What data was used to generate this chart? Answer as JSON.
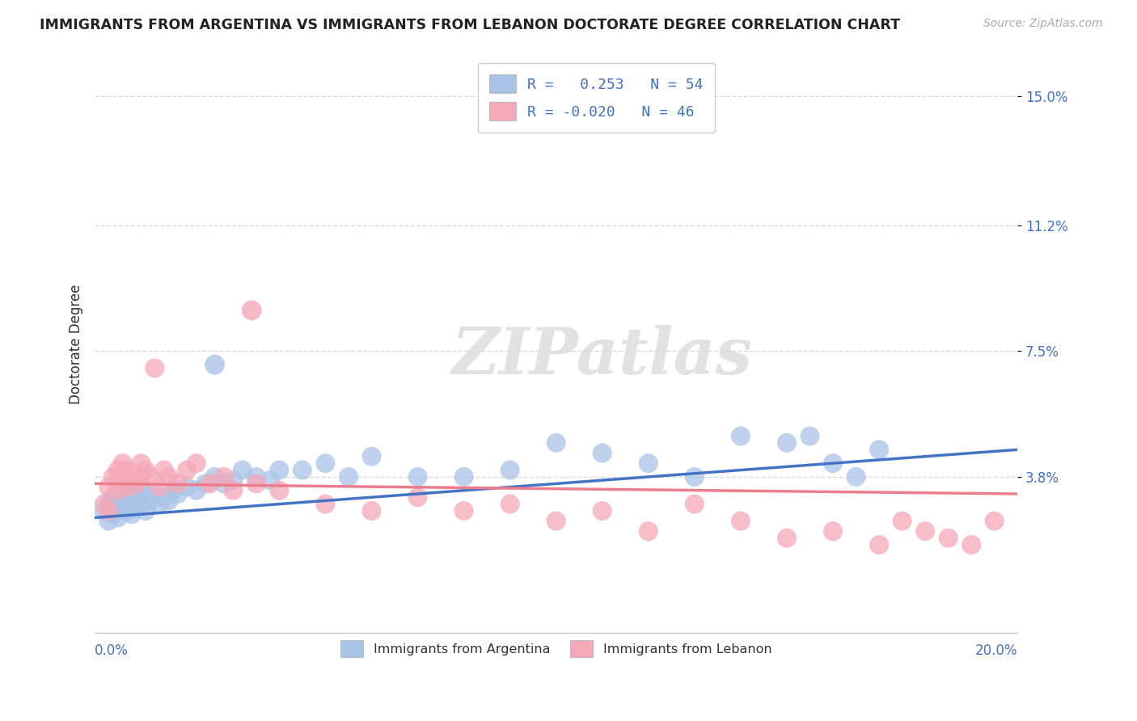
{
  "title": "IMMIGRANTS FROM ARGENTINA VS IMMIGRANTS FROM LEBANON DOCTORATE DEGREE CORRELATION CHART",
  "source": "Source: ZipAtlas.com",
  "ylabel": "Doctorate Degree",
  "xlim": [
    0.0,
    0.2
  ],
  "ylim": [
    -0.008,
    0.162
  ],
  "watermark": "ZIPatlas",
  "legend1_r": "0.253",
  "legend1_n": "54",
  "legend2_r": "-0.020",
  "legend2_n": "46",
  "argentina_color": "#aac4e8",
  "lebanon_color": "#f5a8b8",
  "argentina_line_color": "#4472c4",
  "lebanon_line_color": "#ed7d8c",
  "ytick_vals": [
    0.038,
    0.075,
    0.112,
    0.15
  ],
  "ytick_labels": [
    "3.8%",
    "7.5%",
    "11.2%",
    "15.0%"
  ],
  "background_color": "#ffffff",
  "grid_color": "#d0d0d0",
  "arg_x": [
    0.002,
    0.003,
    0.003,
    0.004,
    0.004,
    0.005,
    0.005,
    0.005,
    0.006,
    0.006,
    0.007,
    0.007,
    0.008,
    0.008,
    0.009,
    0.009,
    0.01,
    0.01,
    0.011,
    0.011,
    0.012,
    0.013,
    0.014,
    0.015,
    0.016,
    0.017,
    0.018,
    0.02,
    0.022,
    0.024,
    0.026,
    0.028,
    0.03,
    0.032,
    0.035,
    0.038,
    0.04,
    0.045,
    0.05,
    0.055,
    0.06,
    0.07,
    0.08,
    0.09,
    0.1,
    0.11,
    0.12,
    0.13,
    0.14,
    0.15,
    0.155,
    0.16,
    0.165,
    0.17
  ],
  "arg_y": [
    0.028,
    0.03,
    0.025,
    0.032,
    0.027,
    0.03,
    0.033,
    0.026,
    0.029,
    0.031,
    0.028,
    0.034,
    0.031,
    0.027,
    0.033,
    0.029,
    0.03,
    0.035,
    0.028,
    0.032,
    0.031,
    0.033,
    0.03,
    0.032,
    0.031,
    0.034,
    0.033,
    0.035,
    0.034,
    0.036,
    0.038,
    0.036,
    0.037,
    0.04,
    0.038,
    0.037,
    0.04,
    0.04,
    0.042,
    0.038,
    0.044,
    0.038,
    0.038,
    0.04,
    0.048,
    0.045,
    0.042,
    0.038,
    0.05,
    0.048,
    0.05,
    0.042,
    0.038,
    0.046
  ],
  "leb_x": [
    0.002,
    0.003,
    0.003,
    0.004,
    0.005,
    0.005,
    0.006,
    0.006,
    0.007,
    0.007,
    0.008,
    0.009,
    0.01,
    0.01,
    0.011,
    0.012,
    0.013,
    0.014,
    0.015,
    0.016,
    0.018,
    0.02,
    0.022,
    0.025,
    0.028,
    0.03,
    0.035,
    0.04,
    0.05,
    0.06,
    0.07,
    0.08,
    0.09,
    0.1,
    0.11,
    0.12,
    0.13,
    0.14,
    0.15,
    0.16,
    0.17,
    0.175,
    0.18,
    0.185,
    0.19,
    0.195
  ],
  "leb_y": [
    0.03,
    0.035,
    0.028,
    0.038,
    0.04,
    0.034,
    0.042,
    0.038,
    0.04,
    0.035,
    0.038,
    0.036,
    0.042,
    0.038,
    0.04,
    0.038,
    0.07,
    0.035,
    0.04,
    0.038,
    0.036,
    0.04,
    0.042,
    0.036,
    0.038,
    0.034,
    0.036,
    0.034,
    0.03,
    0.028,
    0.032,
    0.028,
    0.03,
    0.025,
    0.028,
    0.022,
    0.03,
    0.025,
    0.02,
    0.022,
    0.018,
    0.025,
    0.022,
    0.02,
    0.018,
    0.025
  ],
  "leb_outlier_x": [
    0.034
  ],
  "leb_outlier_y": [
    0.087
  ],
  "arg_outlier_x": [
    0.026
  ],
  "arg_outlier_y": [
    0.071
  ],
  "arg_trend_x0": 0.0,
  "arg_trend_y0": 0.026,
  "arg_trend_x1": 0.2,
  "arg_trend_y1": 0.046,
  "leb_trend_x0": 0.0,
  "leb_trend_y0": 0.036,
  "leb_trend_x1": 0.2,
  "leb_trend_y1": 0.033
}
